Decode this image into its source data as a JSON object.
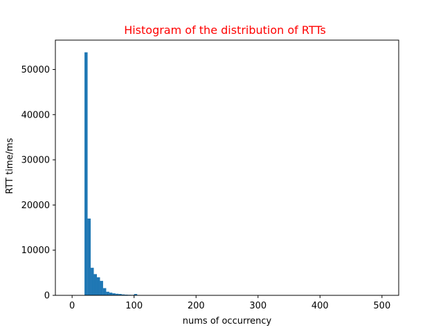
{
  "chart_data": {
    "type": "bar",
    "title": "Histogram of the distribution of RTTs",
    "title_color": "#ff0000",
    "xlabel": "nums of occurrency",
    "ylabel": "RTT time/ms",
    "bar_color": "#1f77b4",
    "xlim": [
      -27,
      527
    ],
    "ylim": [
      0,
      56500
    ],
    "x_ticks": [
      0,
      100,
      200,
      300,
      400,
      500
    ],
    "y_ticks": [
      0,
      10000,
      20000,
      30000,
      40000,
      50000
    ],
    "bin_width": 5,
    "bins": [
      {
        "x": 20,
        "count": 53800
      },
      {
        "x": 25,
        "count": 17000
      },
      {
        "x": 30,
        "count": 6100
      },
      {
        "x": 35,
        "count": 4700
      },
      {
        "x": 40,
        "count": 4000
      },
      {
        "x": 45,
        "count": 3200
      },
      {
        "x": 50,
        "count": 1600
      },
      {
        "x": 55,
        "count": 800
      },
      {
        "x": 60,
        "count": 600
      },
      {
        "x": 65,
        "count": 450
      },
      {
        "x": 70,
        "count": 350
      },
      {
        "x": 75,
        "count": 300
      },
      {
        "x": 80,
        "count": 200
      },
      {
        "x": 85,
        "count": 150
      },
      {
        "x": 90,
        "count": 120
      },
      {
        "x": 95,
        "count": 100
      },
      {
        "x": 100,
        "count": 300
      }
    ],
    "grid": false,
    "legend": "none"
  }
}
